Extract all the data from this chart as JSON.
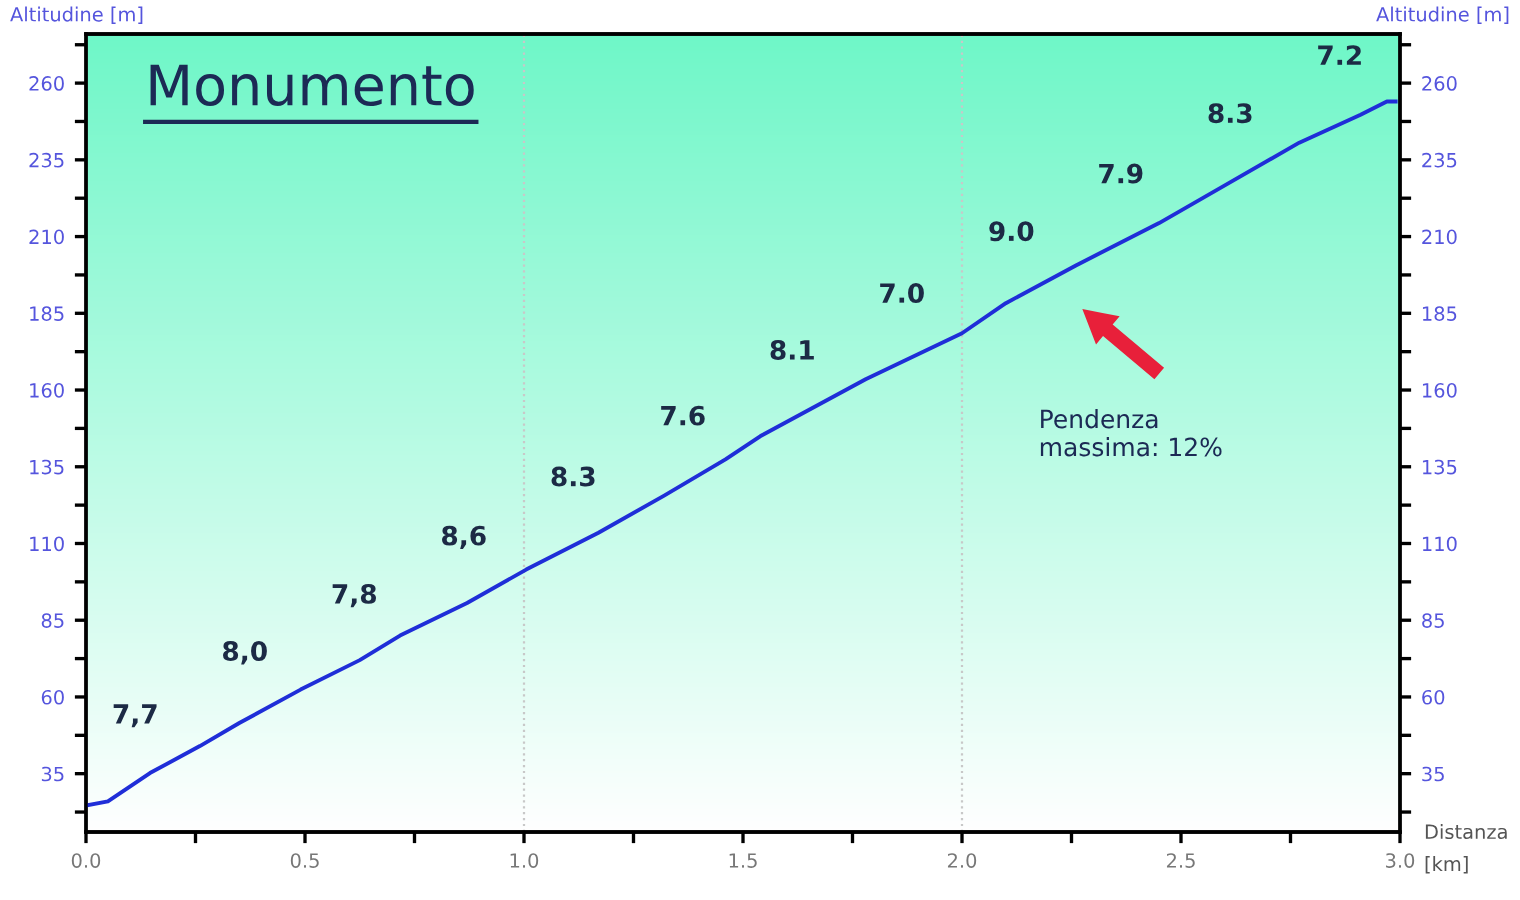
{
  "chart_data": {
    "type": "line",
    "title": "Monumento",
    "xlabel": "Distanza\n[km]",
    "ylabel": "Altitudine [m]",
    "y2label": "Altitudine [m]",
    "x": [
      0,
      0.05,
      0.146,
      0.26,
      0.35,
      0.49,
      0.625,
      0.717,
      0.87,
      1.005,
      1.17,
      1.32,
      1.46,
      1.54,
      1.78,
      2.0,
      2.1,
      2.26,
      2.45,
      2.6,
      2.77,
      2.91,
      2.97,
      2.99
    ],
    "series": [
      {
        "color": "#1f2ed8",
        "values": [
          24.6,
          26,
          35.2,
          44,
          51.5,
          62.4,
          72,
          80,
          90.6,
          101.5,
          113.5,
          125.6,
          137.4,
          145,
          163.5,
          178.5,
          188.3,
          200.6,
          214.4,
          226.7,
          240.6,
          249.7,
          254,
          254
        ]
      }
    ],
    "xlim": [
      0,
      3
    ],
    "ylim": [
      16,
      276
    ],
    "y2lim": [
      16,
      276
    ],
    "xticks": [
      {
        "value": 0,
        "label": "0.0"
      },
      {
        "value": 0.25,
        "label": null
      },
      {
        "value": 0.5,
        "label": "0.5"
      },
      {
        "value": 0.75,
        "label": null
      },
      {
        "value": 1,
        "label": "1.0"
      },
      {
        "value": 1.25,
        "label": null
      },
      {
        "value": 1.5,
        "label": "1.5"
      },
      {
        "value": 1.75,
        "label": null
      },
      {
        "value": 2,
        "label": "2.0"
      },
      {
        "value": 2.25,
        "label": null
      },
      {
        "value": 2.5,
        "label": "2.5"
      },
      {
        "value": 2.75,
        "label": null
      },
      {
        "value": 3,
        "label": "3.0"
      }
    ],
    "yticks": [
      {
        "value": 22.5,
        "label": null
      },
      35,
      {
        "value": 47.5,
        "label": null
      },
      60,
      {
        "value": 72.5,
        "label": null
      },
      85,
      {
        "value": 97.5,
        "label": null
      },
      110,
      {
        "value": 122.5,
        "label": null
      },
      135,
      {
        "value": 147.5,
        "label": null
      },
      160,
      {
        "value": 172.5,
        "label": null
      },
      185,
      {
        "value": 197.5,
        "label": null
      },
      210,
      {
        "value": 222.5,
        "label": null
      },
      235,
      {
        "value": 247.5,
        "label": null
      },
      260,
      {
        "value": 272.5,
        "label": null
      }
    ],
    "y2ticks": [
      {
        "value": 22.5,
        "label": null
      },
      35,
      {
        "value": 47.5,
        "label": null
      },
      60,
      {
        "value": 72.5,
        "label": null
      },
      85,
      {
        "value": 97.5,
        "label": null
      },
      110,
      {
        "value": 122.5,
        "label": null
      },
      135,
      {
        "value": 147.5,
        "label": null
      },
      160,
      {
        "value": 172.5,
        "label": null
      },
      185,
      {
        "value": 197.5,
        "label": null
      },
      210,
      {
        "value": 222.5,
        "label": null
      },
      235,
      {
        "value": 247.5,
        "label": null
      },
      260,
      {
        "value": 272.5,
        "label": null
      }
    ],
    "ref_lines": [
      {
        "axis": "x",
        "value": 1,
        "color": "#c8c8c8",
        "line_style": "dotted"
      },
      {
        "axis": "x",
        "value": 2,
        "color": "#c8c8c8",
        "line_style": "dotted"
      }
    ],
    "annotations": [
      "7,7",
      "8,0",
      "7,8",
      "8,6",
      "8.3",
      "7.6",
      "8.1",
      "7.0",
      "9.0",
      "7.9",
      "8.3",
      "7.2",
      "Pendenza\nmassima: 12%"
    ],
    "grid": false,
    "marker": "none",
    "line_style": "solid"
  }
}
